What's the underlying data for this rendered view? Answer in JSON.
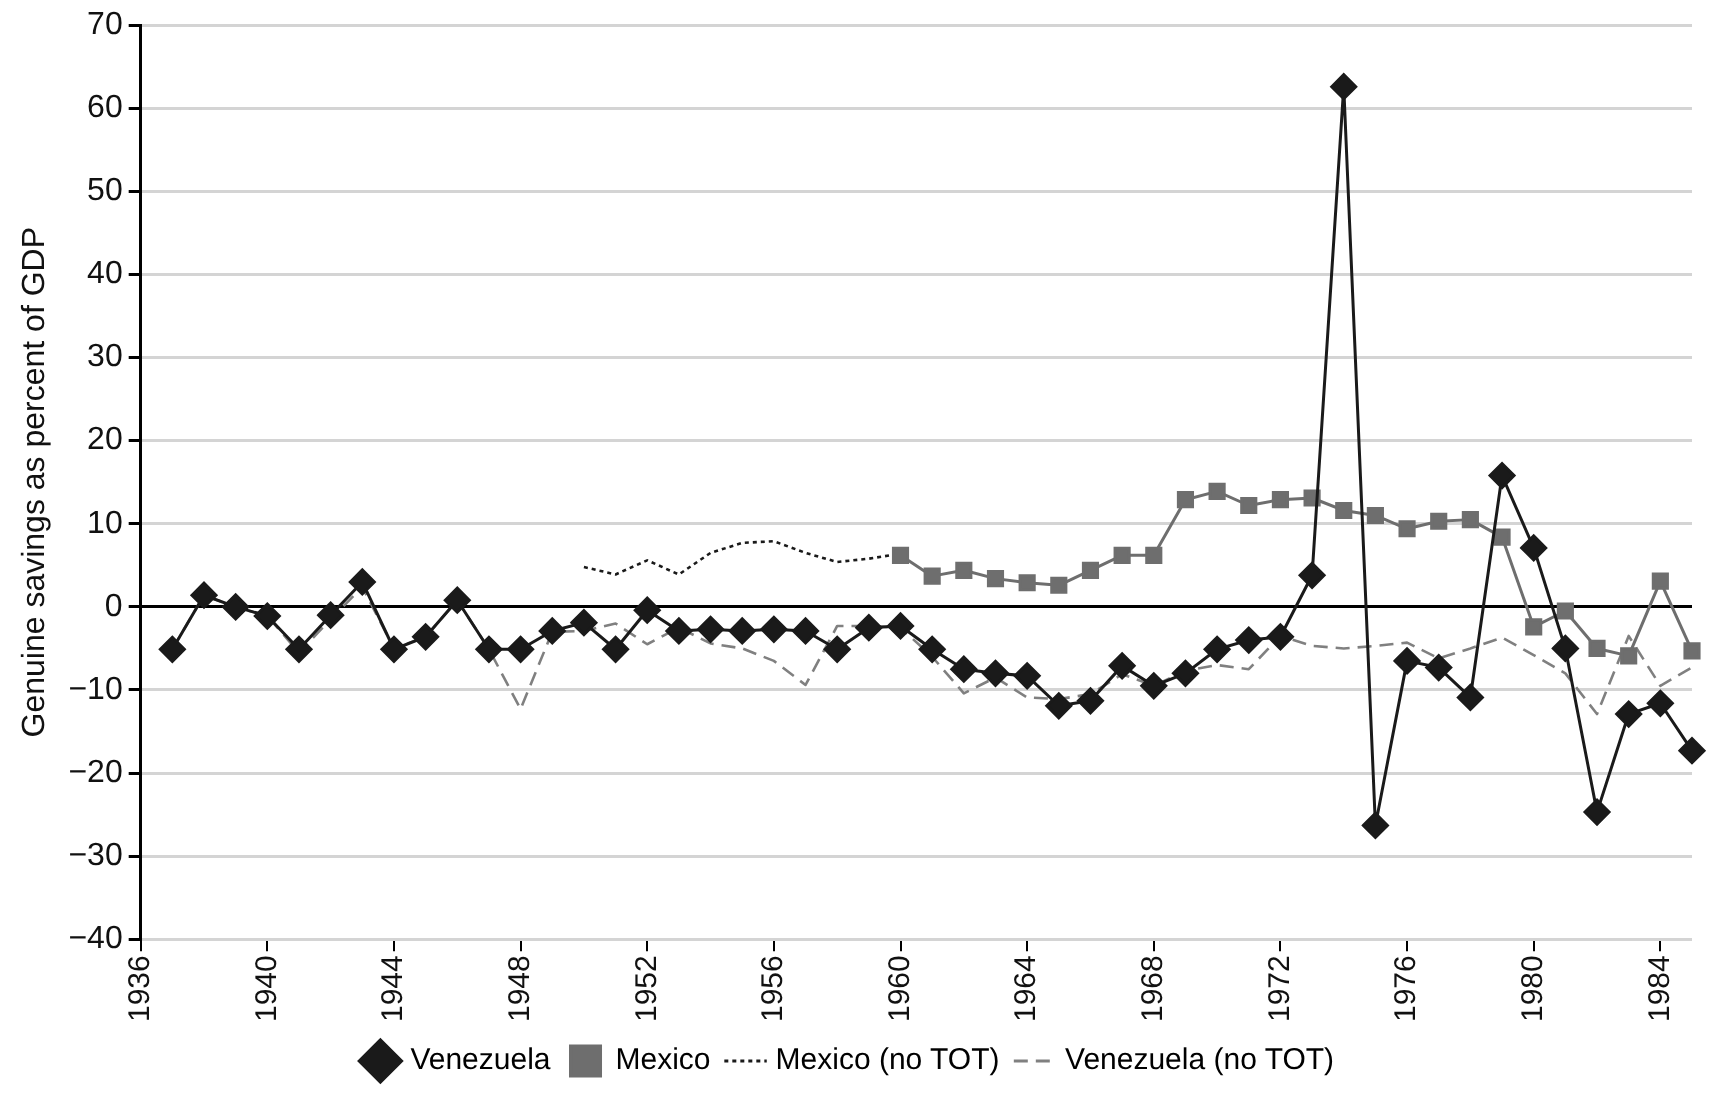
{
  "chart_data": {
    "type": "line",
    "ylabel": "Genuine savings as percent of GDP",
    "categories": [
      "1936",
      null,
      null,
      null,
      "1940",
      null,
      null,
      null,
      "1944",
      null,
      null,
      null,
      "1948",
      null,
      null,
      null,
      "1952",
      null,
      null,
      null,
      "1956",
      null,
      null,
      null,
      "1960",
      null,
      null,
      null,
      "1964",
      null,
      null,
      null,
      "1968",
      null,
      null,
      null,
      "1972",
      null,
      null,
      null,
      "1976",
      null,
      null,
      null,
      "1980",
      null,
      null,
      null,
      "1984",
      null
    ],
    "series": [
      {
        "name": "Venezuela",
        "color": "#1a1a1a",
        "marker": "diamond",
        "line_style": "solid",
        "values": [
          null,
          -5.1,
          1.4,
          0,
          -1.1,
          -5.1,
          -1,
          3,
          -5.1,
          -3.6,
          0.8,
          -5.1,
          -5.1,
          -2.9,
          -1.9,
          -5.1,
          -0.4,
          -2.9,
          -2.7,
          -2.9,
          -2.7,
          -2.9,
          -5.1,
          -2.5,
          -2.3,
          -5.1,
          -7.5,
          -8,
          -8.3,
          -11.9,
          -11.3,
          -7.1,
          -9.5,
          -8,
          -5.1,
          -4,
          -3.6,
          3.8,
          62.6,
          -26.3,
          -6.5,
          -7.3,
          -10.9,
          15.8,
          7.1,
          -5,
          -24.7,
          -12.9,
          -11.6,
          -17.3
        ]
      },
      {
        "name": "Mexico",
        "color": "#6e6e6e",
        "marker": "square",
        "line_style": "solid",
        "values": [
          null,
          null,
          null,
          null,
          null,
          null,
          null,
          null,
          null,
          null,
          null,
          null,
          null,
          null,
          null,
          null,
          null,
          null,
          null,
          null,
          null,
          null,
          null,
          null,
          6.2,
          3.7,
          4.4,
          3.4,
          2.9,
          2.6,
          4.4,
          6.2,
          6.2,
          12.9,
          13.9,
          12.2,
          12.9,
          13.1,
          11.6,
          11,
          9.4,
          10.3,
          10.5,
          8.4,
          -2.4,
          -0.5,
          -5,
          -5.9,
          3.1,
          -5.3
        ]
      },
      {
        "name": "Mexico (no TOT)",
        "color": "#1a1a1a",
        "marker": "none",
        "line_style": "dotted",
        "values": [
          null,
          null,
          null,
          null,
          null,
          null,
          null,
          null,
          null,
          null,
          null,
          null,
          null,
          null,
          4.8,
          3.9,
          5.6,
          3.9,
          6.5,
          7.7,
          7.9,
          6.5,
          5.4,
          5.8,
          6.4,
          null,
          null,
          null,
          null,
          null,
          null,
          null,
          null,
          null,
          null,
          null,
          null,
          null,
          null,
          null,
          null,
          null,
          null,
          null,
          null,
          null,
          null,
          null,
          null,
          null
        ]
      },
      {
        "name": "Venezuela (no TOT)",
        "color": "#808080",
        "marker": "none",
        "line_style": "dashed",
        "values": [
          null,
          -5.1,
          1.4,
          0,
          -1.1,
          -5.5,
          -1.5,
          2.4,
          -5,
          -3.6,
          0.8,
          -5.1,
          -12.3,
          -3,
          -2.9,
          -2,
          -4.5,
          -2.5,
          -4.4,
          -5,
          -6.5,
          -9.4,
          -2.3,
          -2.3,
          -2.5,
          -6,
          -10.4,
          -8.5,
          -10.9,
          -11.1,
          -10.5,
          -8.1,
          -9.5,
          -7.7,
          -7,
          -7.5,
          -3.5,
          -4.7,
          -5,
          -4.7,
          -4.3,
          -6.2,
          -5,
          -3.7,
          -5.8,
          -8,
          -12.9,
          -3.5,
          -9.5,
          -7.3
        ]
      }
    ],
    "ylim": [
      -40,
      70
    ],
    "yticks": [
      -40,
      -30,
      -20,
      -10,
      0,
      10,
      20,
      30,
      40,
      50,
      60,
      70
    ],
    "grid": "y",
    "legend": "bottom"
  }
}
